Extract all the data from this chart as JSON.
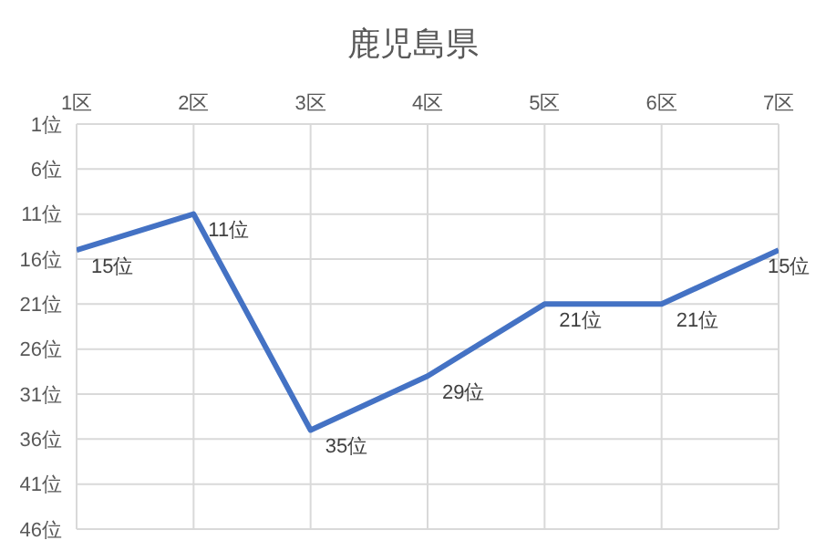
{
  "chart_data": {
    "type": "line",
    "title": "鹿児島県",
    "categories": [
      "1区",
      "2区",
      "3区",
      "4区",
      "5区",
      "6区",
      "7区"
    ],
    "series": [
      {
        "color": "#4472c4",
        "values": [
          15,
          11,
          35,
          29,
          21,
          21,
          15
        ],
        "value_labels": [
          "15位",
          "11位",
          "35位",
          "29位",
          "21位",
          "21位",
          "15位"
        ]
      }
    ],
    "ylim": [
      46,
      1
    ],
    "yticks": [
      {
        "value": 1,
        "label": "1位"
      },
      {
        "value": 6,
        "label": "6位"
      },
      {
        "value": 11,
        "label": "11位"
      },
      {
        "value": 16,
        "label": "16位"
      },
      {
        "value": 21,
        "label": "21位"
      },
      {
        "value": 26,
        "label": "26位"
      },
      {
        "value": 31,
        "label": "31位"
      },
      {
        "value": 36,
        "label": "36位"
      },
      {
        "value": 41,
        "label": "41位"
      },
      {
        "value": 46,
        "label": "46位"
      }
    ],
    "grid": true,
    "marker": "none",
    "line_style": "solid",
    "legend": false
  }
}
